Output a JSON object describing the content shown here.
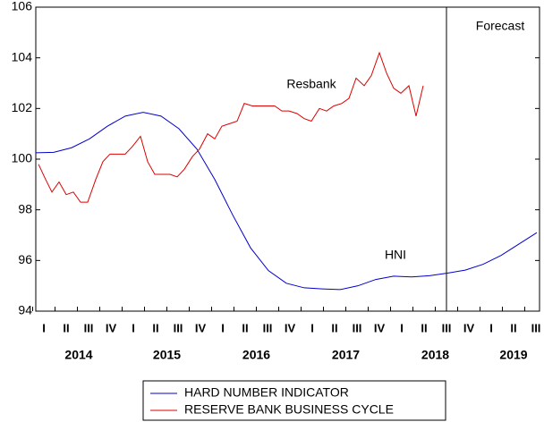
{
  "chart_data": {
    "type": "line",
    "annotations": [
      "Resbank",
      "HNI",
      "Forecast"
    ],
    "xlim": [
      2013.91,
      2019.54
    ],
    "ylim": [
      94,
      106
    ],
    "yticks": [
      94,
      96,
      98,
      100,
      102,
      104,
      106
    ],
    "xticks": [
      {
        "value": 2014.0,
        "label": "I"
      },
      {
        "value": 2014.25,
        "label": "II"
      },
      {
        "value": 2014.5,
        "label": "III"
      },
      {
        "value": 2014.75,
        "label": "IV"
      },
      {
        "value": 2015.0,
        "label": "I"
      },
      {
        "value": 2015.25,
        "label": "II"
      },
      {
        "value": 2015.5,
        "label": "III"
      },
      {
        "value": 2015.75,
        "label": "IV"
      },
      {
        "value": 2016.0,
        "label": "I"
      },
      {
        "value": 2016.25,
        "label": "II"
      },
      {
        "value": 2016.5,
        "label": "III"
      },
      {
        "value": 2016.75,
        "label": "IV"
      },
      {
        "value": 2017.0,
        "label": "I"
      },
      {
        "value": 2017.25,
        "label": "II"
      },
      {
        "value": 2017.5,
        "label": "III"
      },
      {
        "value": 2017.75,
        "label": "IV"
      },
      {
        "value": 2018.0,
        "label": "I"
      },
      {
        "value": 2018.25,
        "label": "II"
      },
      {
        "value": 2018.5,
        "label": "III"
      },
      {
        "value": 2018.75,
        "label": "IV"
      },
      {
        "value": 2019.0,
        "label": "I"
      },
      {
        "value": 2019.25,
        "label": "II"
      },
      {
        "value": 2019.5,
        "label": "III"
      }
    ],
    "year_ticks": [
      {
        "value": 2014.39,
        "label": "2014"
      },
      {
        "value": 2015.375,
        "label": "2015"
      },
      {
        "value": 2016.375,
        "label": "2016"
      },
      {
        "value": 2017.375,
        "label": "2017"
      },
      {
        "value": 2018.375,
        "label": "2018"
      },
      {
        "value": 2019.25,
        "label": "2019"
      }
    ],
    "forecast_start": 2018.5,
    "series": [
      {
        "name": "HARD NUMBER INDICATOR",
        "color": "#0000cc",
        "x": [
          2013.91,
          2014.11,
          2014.31,
          2014.51,
          2014.71,
          2014.91,
          2015.11,
          2015.31,
          2015.51,
          2015.71,
          2015.91,
          2016.11,
          2016.31,
          2016.51,
          2016.71,
          2016.91,
          2017.11,
          2017.31,
          2017.51,
          2017.71,
          2017.91,
          2018.11,
          2018.31,
          2018.51,
          2018.71,
          2018.91,
          2019.11,
          2019.31,
          2019.51
        ],
        "values": [
          100.25,
          100.27,
          100.45,
          100.8,
          101.3,
          101.7,
          101.85,
          101.7,
          101.2,
          100.4,
          99.2,
          97.8,
          96.5,
          95.6,
          95.1,
          94.92,
          94.88,
          94.85,
          95.0,
          95.25,
          95.38,
          95.35,
          95.4,
          95.5,
          95.62,
          95.85,
          96.2,
          96.65,
          97.1
        ]
      },
      {
        "name": "RESERVE BANK BUSINESS CYCLE",
        "color": "#dd0000",
        "x": [
          2013.94,
          2014.02,
          2014.09,
          2014.17,
          2014.25,
          2014.33,
          2014.41,
          2014.49,
          2014.58,
          2014.66,
          2014.74,
          2014.91,
          2014.99,
          2015.08,
          2015.16,
          2015.24,
          2015.41,
          2015.49,
          2015.57,
          2015.66,
          2015.74,
          2015.83,
          2015.91,
          2015.99,
          2016.16,
          2016.24,
          2016.33,
          2016.58,
          2016.66,
          2016.74,
          2016.83,
          2016.91,
          2016.99,
          2017.08,
          2017.16,
          2017.24,
          2017.33,
          2017.41,
          2017.49,
          2017.58,
          2017.66,
          2017.75,
          2017.83,
          2017.91,
          2017.99,
          2018.08,
          2018.16,
          2018.24
        ],
        "values": [
          99.8,
          99.2,
          98.7,
          99.1,
          98.6,
          98.7,
          98.3,
          98.3,
          99.2,
          99.9,
          100.2,
          100.2,
          100.5,
          100.9,
          99.9,
          99.4,
          99.4,
          99.3,
          99.6,
          100.1,
          100.4,
          101.0,
          100.8,
          101.3,
          101.5,
          102.2,
          102.1,
          102.1,
          101.9,
          101.9,
          101.8,
          101.6,
          101.5,
          102.0,
          101.9,
          102.1,
          102.2,
          102.4,
          103.2,
          102.9,
          103.3,
          104.2,
          103.4,
          102.8,
          102.6,
          102.9,
          101.7,
          102.9
        ]
      }
    ]
  }
}
